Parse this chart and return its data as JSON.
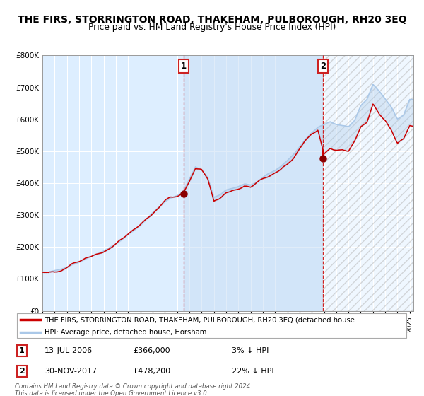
{
  "title1": "THE FIRS, STORRINGTON ROAD, THAKEHAM, PULBOROUGH, RH20 3EQ",
  "title2": "Price paid vs. HM Land Registry's House Price Index (HPI)",
  "sale1_date_num": 2006.53,
  "sale1_price": 366000,
  "sale2_date_num": 2017.92,
  "sale2_price": 478200,
  "legend_line1": "THE FIRS, STORRINGTON ROAD, THAKEHAM, PULBOROUGH, RH20 3EQ (detached house",
  "legend_line2": "HPI: Average price, detached house, Horsham",
  "table_row1": [
    "1",
    "13-JUL-2006",
    "£366,000",
    "3% ↓ HPI"
  ],
  "table_row2": [
    "2",
    "30-NOV-2017",
    "£478,200",
    "22% ↓ HPI"
  ],
  "footnote": "Contains HM Land Registry data © Crown copyright and database right 2024.\nThis data is licensed under the Open Government Licence v3.0.",
  "ylim": [
    0,
    800000
  ],
  "xlim_start": 1995.0,
  "xlim_end": 2025.3,
  "hpi_color": "#aac8e8",
  "price_color": "#cc0000",
  "bg_color": "#ddeeff",
  "fill_between_color": "#c8dff5",
  "title_fontsize": 10.0,
  "subtitle_fontsize": 9.0,
  "hpi_waypoints_x": [
    1995.0,
    1995.5,
    1996.0,
    1996.5,
    1997.0,
    1997.5,
    1998.0,
    1998.5,
    1999.0,
    1999.5,
    2000.0,
    2000.5,
    2001.0,
    2001.5,
    2002.0,
    2002.5,
    2003.0,
    2003.5,
    2004.0,
    2004.5,
    2005.0,
    2005.5,
    2006.0,
    2006.5,
    2007.0,
    2007.5,
    2008.0,
    2008.5,
    2009.0,
    2009.5,
    2010.0,
    2010.5,
    2011.0,
    2011.5,
    2012.0,
    2012.5,
    2013.0,
    2013.5,
    2014.0,
    2014.5,
    2015.0,
    2015.5,
    2016.0,
    2016.5,
    2017.0,
    2017.5,
    2018.0,
    2018.5,
    2019.0,
    2019.5,
    2020.0,
    2020.5,
    2021.0,
    2021.5,
    2022.0,
    2022.5,
    2023.0,
    2023.5,
    2024.0,
    2024.5,
    2025.0
  ],
  "hpi_waypoints_y": [
    122000,
    120000,
    125000,
    132000,
    140000,
    148000,
    155000,
    162000,
    168000,
    175000,
    185000,
    195000,
    207000,
    220000,
    235000,
    250000,
    268000,
    288000,
    308000,
    325000,
    340000,
    350000,
    358000,
    370000,
    410000,
    450000,
    440000,
    415000,
    355000,
    365000,
    380000,
    385000,
    390000,
    395000,
    390000,
    400000,
    415000,
    428000,
    438000,
    450000,
    468000,
    490000,
    515000,
    540000,
    560000,
    575000,
    580000,
    590000,
    582000,
    578000,
    575000,
    595000,
    640000,
    660000,
    710000,
    690000,
    665000,
    640000,
    600000,
    610000,
    660000
  ],
  "prop_offset_y": [
    2000,
    0,
    -2000,
    -5000,
    -3000,
    -1000,
    2000,
    5000,
    3000,
    0,
    -2000,
    -5000,
    -3000,
    -1000,
    2000,
    5000,
    3000,
    2000,
    -3000,
    -5000,
    -2000,
    0,
    -5000,
    -3000,
    -10000,
    -5000,
    0,
    -8000,
    -18000,
    -12000,
    -8000,
    -5000,
    -8000,
    -5000,
    -8000,
    -3000,
    -5000,
    -8000,
    -5000,
    -8000,
    -10000,
    -12000,
    -8000,
    -10000,
    -5000,
    -8000,
    -90000,
    -85000,
    -80000,
    -78000,
    -82000,
    -72000,
    -68000,
    -72000,
    -60000,
    -70000,
    -65000,
    -72000,
    -80000,
    -75000,
    -80000
  ]
}
